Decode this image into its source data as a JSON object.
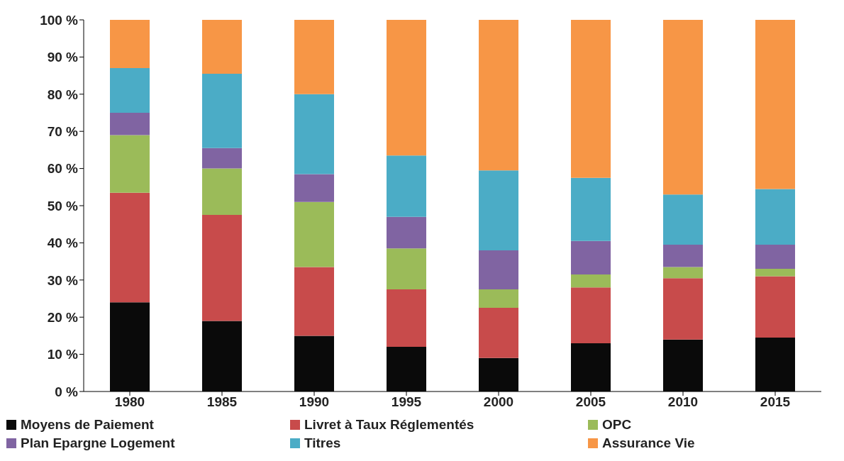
{
  "chart_data": {
    "type": "bar",
    "stacked": true,
    "categories": [
      "1980",
      "1985",
      "1990",
      "1995",
      "2000",
      "2005",
      "2010",
      "2015"
    ],
    "series": [
      {
        "name": "Moyens de Paiement",
        "color": "#0a0a0a",
        "values": [
          24,
          19,
          15,
          12,
          9,
          13,
          14,
          14.5
        ]
      },
      {
        "name": "Livret à Taux Réglementés",
        "color": "#c84b4b",
        "values": [
          29.5,
          28.5,
          18.5,
          15.5,
          13.5,
          15,
          16.5,
          16.5
        ]
      },
      {
        "name": "OPC",
        "color": "#9bbb59",
        "values": [
          15.5,
          12.5,
          17.5,
          11,
          5,
          3.5,
          3,
          2
        ]
      },
      {
        "name": "Plan Epargne Logement",
        "color": "#8064a2",
        "values": [
          6,
          5.5,
          7.5,
          8.5,
          10.5,
          9,
          6,
          6.5
        ]
      },
      {
        "name": "Titres",
        "color": "#4bacc6",
        "values": [
          12,
          20,
          21.5,
          16.5,
          21.5,
          17,
          13.5,
          15
        ]
      },
      {
        "name": "Assurance Vie",
        "color": "#f79646",
        "values": [
          13,
          14.5,
          20,
          36.5,
          40.5,
          42.5,
          47,
          45.5
        ]
      }
    ],
    "ylim": [
      0,
      100
    ],
    "yticks": [
      {
        "value": 0,
        "label": "0 %"
      },
      {
        "value": 10,
        "label": "10 %"
      },
      {
        "value": 20,
        "label": "20 %"
      },
      {
        "value": 30,
        "label": "30 %"
      },
      {
        "value": 40,
        "label": "40 %"
      },
      {
        "value": 50,
        "label": "50 %"
      },
      {
        "value": 60,
        "label": "60 %"
      },
      {
        "value": 70,
        "label": "70 %"
      },
      {
        "value": 80,
        "label": "80 %"
      },
      {
        "value": 90,
        "label": "90 %"
      },
      {
        "value": 100,
        "label": "100 %"
      }
    ],
    "grid": false,
    "legend": "bottom"
  }
}
